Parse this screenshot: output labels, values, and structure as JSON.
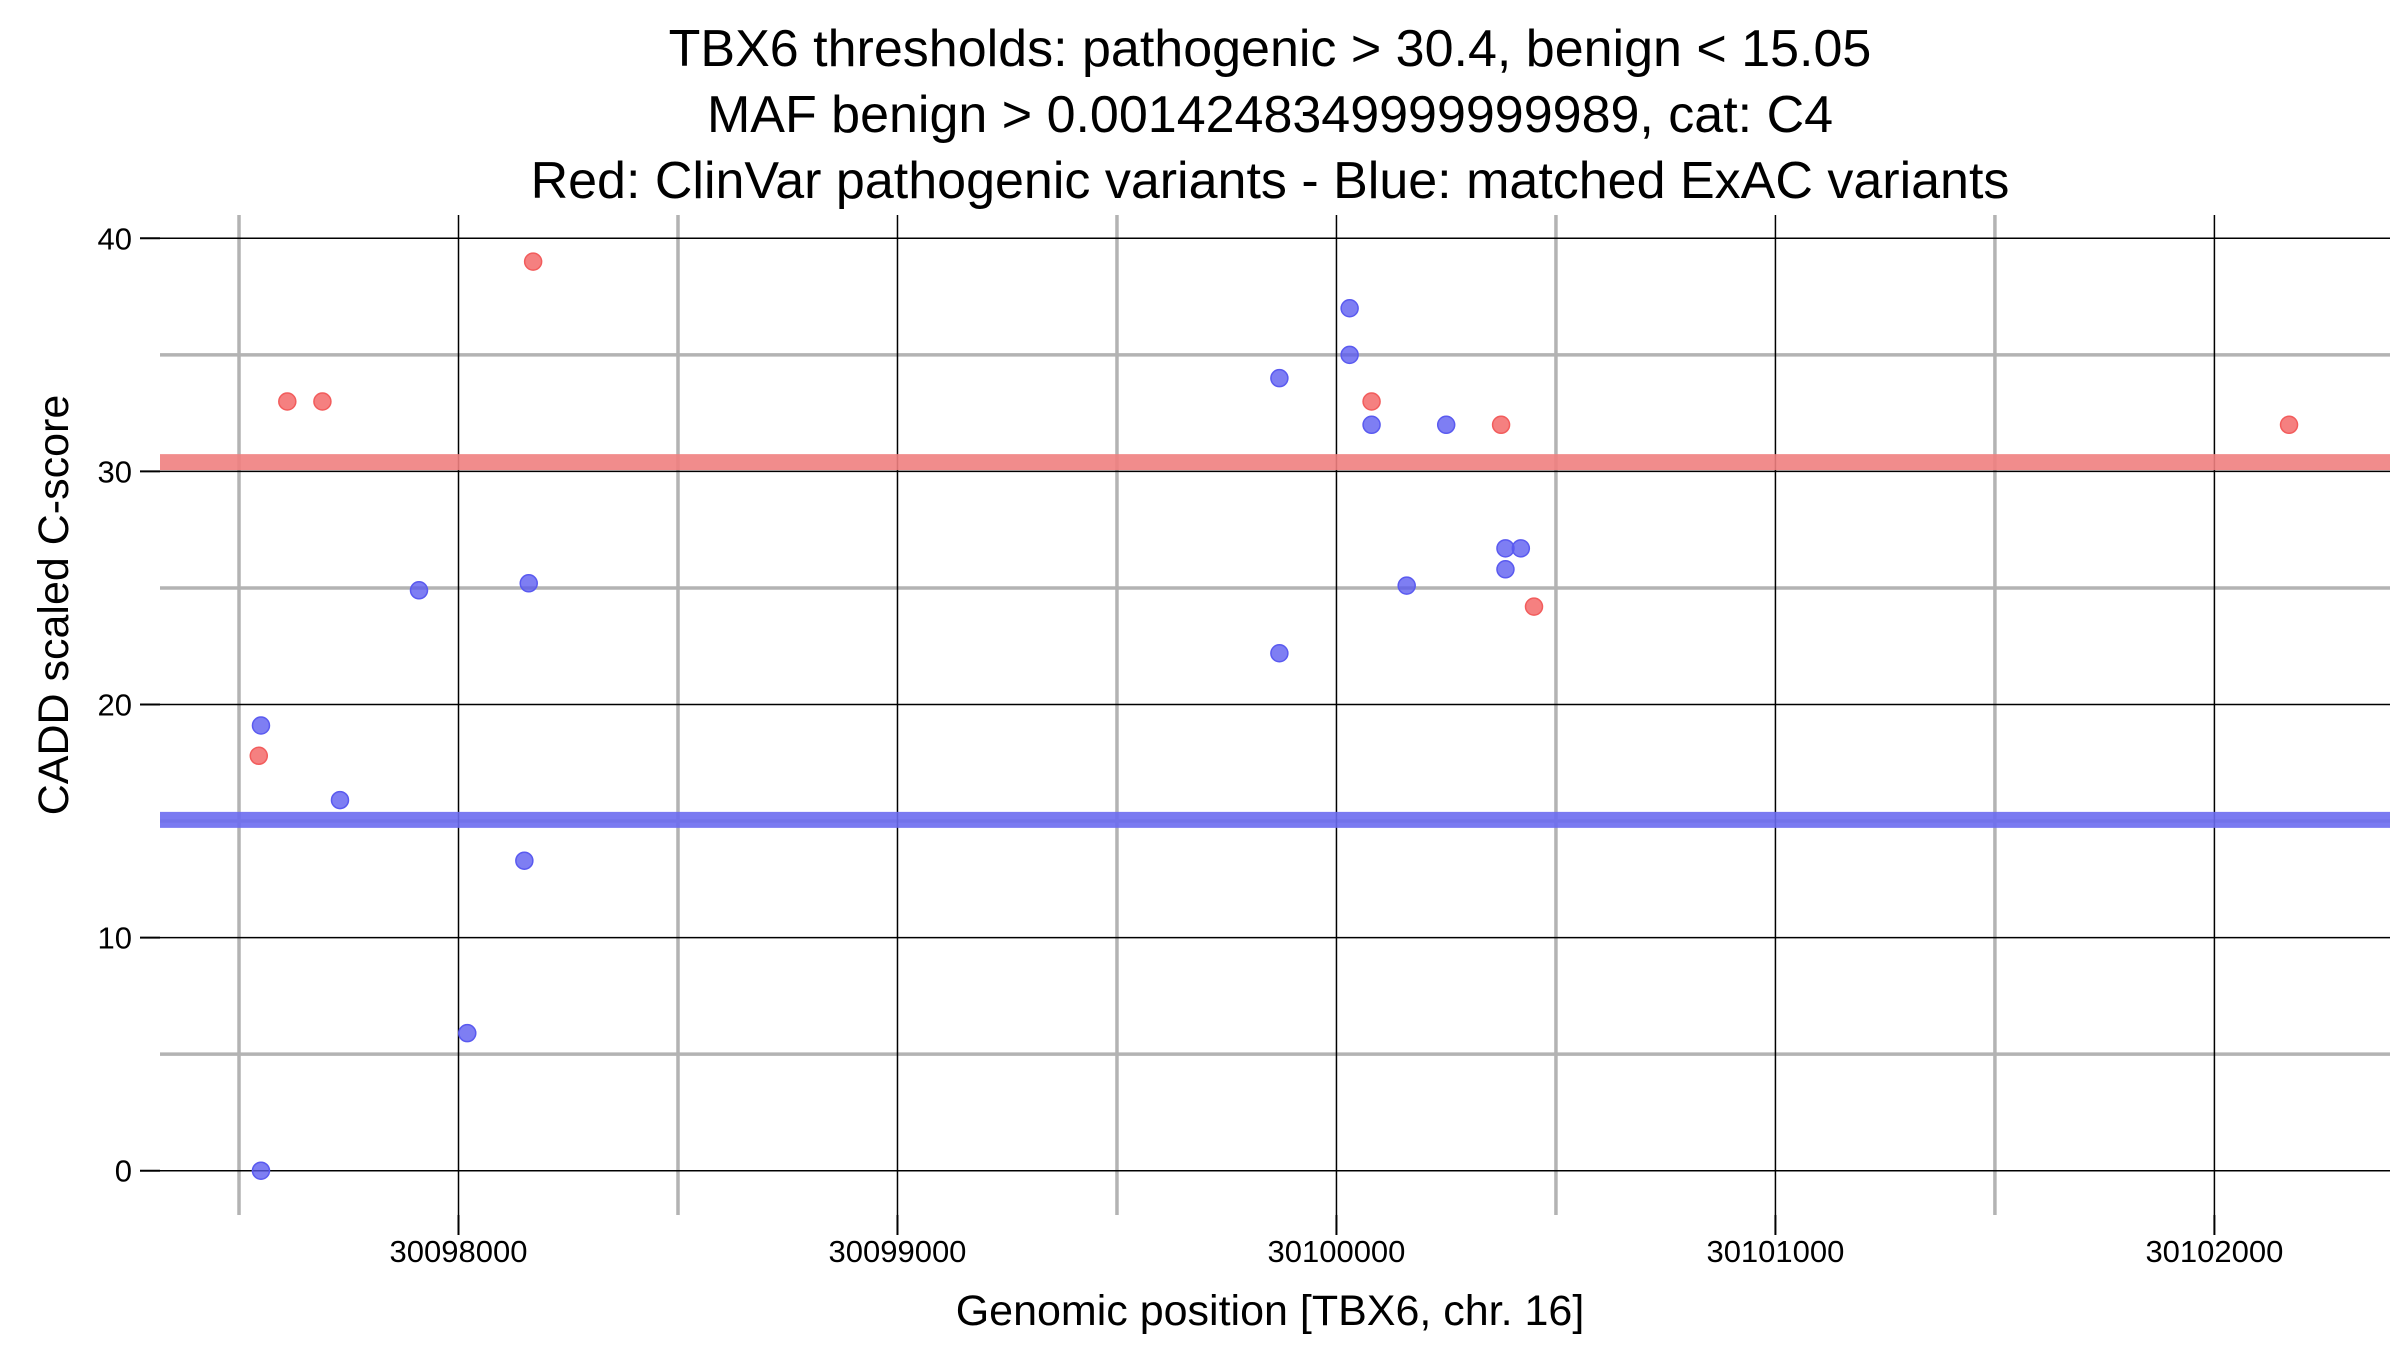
{
  "chart_data": {
    "type": "scatter",
    "title_lines": [
      "TBX6 thresholds: pathogenic > 30.4, benign < 15.05",
      "MAF benign > 0.0014248349999999989, cat: C4",
      "Red: ClinVar pathogenic variants - Blue: matched ExAC variants"
    ],
    "xlabel": "Genomic position [TBX6, chr. 16]",
    "ylabel": "CADD scaled C-score",
    "xlim": [
      30097320,
      30102400
    ],
    "ylim": [
      -1.9,
      41
    ],
    "x_ticks": [
      30098000,
      30099000,
      30100000,
      30101000,
      30102000
    ],
    "x_tick_labels": [
      "30098000",
      "30099000",
      "30100000",
      "30101000",
      "30102000"
    ],
    "y_ticks": [
      0,
      10,
      20,
      30,
      40
    ],
    "y_tick_labels": [
      "0",
      "10",
      "20",
      "30",
      "40"
    ],
    "x_minor_grid": [
      30097500,
      30098500,
      30099500,
      30100500,
      30101500
    ],
    "y_minor_grid": [
      5,
      15,
      25,
      35
    ],
    "grid": true,
    "thresholds": [
      {
        "name": "pathogenic",
        "value": 30.4,
        "color": "#f08080"
      },
      {
        "name": "benign",
        "value": 15.05,
        "color": "#6c6cf0"
      }
    ],
    "series": [
      {
        "color": "#f25c5c",
        "points": [
          {
            "x": 30097545,
            "y": 17.8
          },
          {
            "x": 30097610,
            "y": 33
          },
          {
            "x": 30097690,
            "y": 33
          },
          {
            "x": 30098170,
            "y": 39
          },
          {
            "x": 30100080,
            "y": 33
          },
          {
            "x": 30100375,
            "y": 32
          },
          {
            "x": 30100450,
            "y": 24.2
          },
          {
            "x": 30102170,
            "y": 32
          }
        ]
      },
      {
        "color": "#5a5af0",
        "points": [
          {
            "x": 30097550,
            "y": 19.1
          },
          {
            "x": 30097550,
            "y": 0
          },
          {
            "x": 30097730,
            "y": 15.9
          },
          {
            "x": 30097910,
            "y": 24.9
          },
          {
            "x": 30098020,
            "y": 5.9
          },
          {
            "x": 30098150,
            "y": 13.3
          },
          {
            "x": 30098160,
            "y": 25.2
          },
          {
            "x": 30099870,
            "y": 34
          },
          {
            "x": 30099870,
            "y": 22.2
          },
          {
            "x": 30100030,
            "y": 37
          },
          {
            "x": 30100030,
            "y": 35
          },
          {
            "x": 30100080,
            "y": 32
          },
          {
            "x": 30100160,
            "y": 25.1
          },
          {
            "x": 30100250,
            "y": 32
          },
          {
            "x": 30100385,
            "y": 26.7
          },
          {
            "x": 30100385,
            "y": 25.8
          },
          {
            "x": 30100420,
            "y": 26.7
          }
        ]
      }
    ]
  }
}
